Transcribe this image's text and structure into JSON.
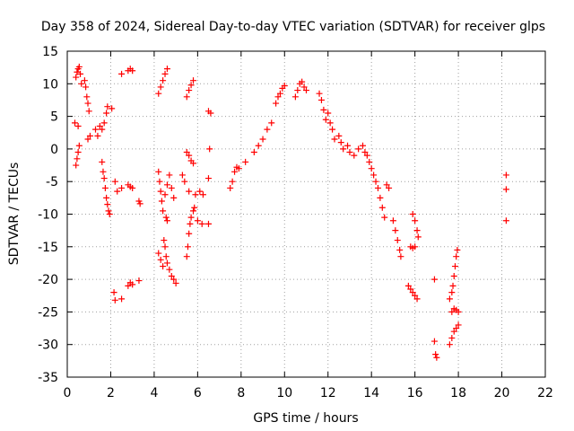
{
  "chart_data": {
    "type": "scatter",
    "title": "Day 358 of 2024, Sidereal Day-to-day VTEC variation (SDTVAR) for receiver glps",
    "xlabel": "GPS time / hours",
    "ylabel": "SDTVAR / TECUs",
    "xlim": [
      0,
      22
    ],
    "ylim": [
      -35,
      15
    ],
    "xticks": [
      "0",
      "2",
      "4",
      "6",
      "8",
      "10",
      "12",
      "14",
      "16",
      "18",
      "20",
      "22"
    ],
    "yticks": [
      "15",
      "10",
      "5",
      "0",
      "-5",
      "-10",
      "-15",
      "-20",
      "-25",
      "-30",
      "-35"
    ],
    "grid": true,
    "marker": "plus",
    "series": [
      {
        "name": "SDTVAR",
        "color": "#ff0000",
        "points": [
          [
            0.4,
            -2.5
          ],
          [
            0.45,
            -1.5
          ],
          [
            0.5,
            -0.5
          ],
          [
            0.55,
            0.5
          ],
          [
            0.35,
            4.0
          ],
          [
            0.5,
            3.5
          ],
          [
            0.4,
            11.0
          ],
          [
            0.45,
            11.8
          ],
          [
            0.5,
            12.3
          ],
          [
            0.55,
            12.6
          ],
          [
            0.6,
            11.5
          ],
          [
            0.65,
            10.0
          ],
          [
            0.8,
            10.5
          ],
          [
            0.85,
            9.5
          ],
          [
            0.9,
            8.0
          ],
          [
            0.95,
            7.0
          ],
          [
            1.0,
            5.8
          ],
          [
            1.05,
            2.0
          ],
          [
            0.95,
            1.5
          ],
          [
            1.3,
            3.0
          ],
          [
            1.4,
            2.0
          ],
          [
            1.5,
            3.5
          ],
          [
            1.6,
            3.0
          ],
          [
            1.7,
            4.0
          ],
          [
            1.8,
            5.5
          ],
          [
            1.85,
            6.5
          ],
          [
            2.05,
            6.2
          ],
          [
            1.6,
            -2.0
          ],
          [
            1.65,
            -3.5
          ],
          [
            1.7,
            -4.5
          ],
          [
            1.75,
            -6.0
          ],
          [
            1.8,
            -7.5
          ],
          [
            1.85,
            -8.5
          ],
          [
            1.9,
            -9.5
          ],
          [
            1.95,
            -10.0
          ],
          [
            2.2,
            -5.0
          ],
          [
            2.3,
            -6.5
          ],
          [
            2.5,
            -6.0
          ],
          [
            2.15,
            -22.0
          ],
          [
            2.2,
            -23.2
          ],
          [
            2.5,
            -23.0
          ],
          [
            2.5,
            11.5
          ],
          [
            2.8,
            12.0
          ],
          [
            2.9,
            12.3
          ],
          [
            3.0,
            12.0
          ],
          [
            2.8,
            -5.5
          ],
          [
            2.9,
            -5.8
          ],
          [
            3.0,
            -6.0
          ],
          [
            2.8,
            -21.0
          ],
          [
            2.9,
            -20.5
          ],
          [
            3.0,
            -20.8
          ],
          [
            3.3,
            -20.2
          ],
          [
            3.3,
            -8.0
          ],
          [
            3.35,
            -8.4
          ],
          [
            4.2,
            8.5
          ],
          [
            4.3,
            9.5
          ],
          [
            4.4,
            10.5
          ],
          [
            4.5,
            11.5
          ],
          [
            4.6,
            12.3
          ],
          [
            4.2,
            -3.5
          ],
          [
            4.25,
            -5.0
          ],
          [
            4.3,
            -6.5
          ],
          [
            4.35,
            -8.0
          ],
          [
            4.4,
            -9.5
          ],
          [
            4.5,
            -7.0
          ],
          [
            4.6,
            -5.5
          ],
          [
            4.7,
            -4.0
          ],
          [
            4.8,
            -6.0
          ],
          [
            4.9,
            -7.5
          ],
          [
            4.55,
            -10.5
          ],
          [
            4.6,
            -11.0
          ],
          [
            4.2,
            -16.0
          ],
          [
            4.3,
            -17.0
          ],
          [
            4.4,
            -18.0
          ],
          [
            4.5,
            -15.0
          ],
          [
            4.55,
            -16.5
          ],
          [
            4.6,
            -17.5
          ],
          [
            4.7,
            -18.5
          ],
          [
            4.8,
            -19.5
          ],
          [
            4.9,
            -20.0
          ],
          [
            5.0,
            -20.6
          ],
          [
            4.45,
            -14.0
          ],
          [
            5.5,
            -16.5
          ],
          [
            5.55,
            -15.0
          ],
          [
            5.6,
            -13.0
          ],
          [
            5.65,
            -11.5
          ],
          [
            5.7,
            -10.5
          ],
          [
            5.8,
            -9.5
          ],
          [
            5.85,
            -9.0
          ],
          [
            5.3,
            -4.0
          ],
          [
            5.4,
            -5.0
          ],
          [
            5.6,
            -6.5
          ],
          [
            5.9,
            -7.0
          ],
          [
            5.5,
            8.0
          ],
          [
            5.6,
            9.0
          ],
          [
            5.7,
            9.8
          ],
          [
            5.8,
            10.5
          ],
          [
            5.5,
            -0.5
          ],
          [
            5.6,
            -1.0
          ],
          [
            5.7,
            -1.8
          ],
          [
            5.8,
            -2.2
          ],
          [
            6.0,
            -11.0
          ],
          [
            6.2,
            -11.5
          ],
          [
            6.5,
            -11.5
          ],
          [
            6.1,
            -6.5
          ],
          [
            6.25,
            -7.0
          ],
          [
            6.5,
            -4.5
          ],
          [
            6.55,
            0.0
          ],
          [
            6.5,
            5.8
          ],
          [
            6.6,
            5.5
          ],
          [
            7.5,
            -6.0
          ],
          [
            7.6,
            -5.0
          ],
          [
            7.7,
            -3.5
          ],
          [
            7.8,
            -2.8
          ],
          [
            7.9,
            -3.0
          ],
          [
            8.2,
            -2.0
          ],
          [
            8.6,
            -0.5
          ],
          [
            8.8,
            0.5
          ],
          [
            9.0,
            1.5
          ],
          [
            9.2,
            3.0
          ],
          [
            9.4,
            4.0
          ],
          [
            9.6,
            7.0
          ],
          [
            9.7,
            8.0
          ],
          [
            9.8,
            8.5
          ],
          [
            9.9,
            9.3
          ],
          [
            10.0,
            9.7
          ],
          [
            10.5,
            8.0
          ],
          [
            10.6,
            9.0
          ],
          [
            10.7,
            10.0
          ],
          [
            10.8,
            10.3
          ],
          [
            10.9,
            9.5
          ],
          [
            11.0,
            9.0
          ],
          [
            11.6,
            8.5
          ],
          [
            11.7,
            7.5
          ],
          [
            11.8,
            6.0
          ],
          [
            11.9,
            4.5
          ],
          [
            12.0,
            5.5
          ],
          [
            12.1,
            4.0
          ],
          [
            12.2,
            3.0
          ],
          [
            12.3,
            1.5
          ],
          [
            12.5,
            2.0
          ],
          [
            12.6,
            1.0
          ],
          [
            12.7,
            0.0
          ],
          [
            12.9,
            0.5
          ],
          [
            13.0,
            -0.5
          ],
          [
            13.2,
            -1.0
          ],
          [
            13.4,
            0.0
          ],
          [
            13.6,
            0.5
          ],
          [
            13.7,
            -0.5
          ],
          [
            13.8,
            -1.0
          ],
          [
            13.9,
            -2.0
          ],
          [
            14.0,
            -3.0
          ],
          [
            14.1,
            -4.0
          ],
          [
            14.2,
            -5.0
          ],
          [
            14.3,
            -6.0
          ],
          [
            14.4,
            -7.5
          ],
          [
            14.5,
            -9.0
          ],
          [
            14.6,
            -10.5
          ],
          [
            14.7,
            -5.5
          ],
          [
            14.8,
            -6.0
          ],
          [
            15.0,
            -11.0
          ],
          [
            15.1,
            -12.5
          ],
          [
            15.2,
            -14.0
          ],
          [
            15.3,
            -15.5
          ],
          [
            15.35,
            -16.5
          ],
          [
            15.8,
            -15.0
          ],
          [
            15.9,
            -15.2
          ],
          [
            16.0,
            -15.0
          ],
          [
            15.9,
            -10.0
          ],
          [
            16.0,
            -11.0
          ],
          [
            16.1,
            -12.5
          ],
          [
            16.15,
            -13.5
          ],
          [
            15.7,
            -21.0
          ],
          [
            15.8,
            -21.5
          ],
          [
            15.9,
            -22.0
          ],
          [
            16.0,
            -22.5
          ],
          [
            16.1,
            -23.0
          ],
          [
            16.9,
            -20.0
          ],
          [
            16.9,
            -29.5
          ],
          [
            16.95,
            -31.5
          ],
          [
            17.0,
            -32.0
          ],
          [
            17.6,
            -23.0
          ],
          [
            17.7,
            -22.0
          ],
          [
            17.75,
            -21.0
          ],
          [
            17.8,
            -19.5
          ],
          [
            17.85,
            -18.0
          ],
          [
            17.9,
            -16.5
          ],
          [
            17.95,
            -15.5
          ],
          [
            17.7,
            -25.0
          ],
          [
            17.8,
            -24.5
          ],
          [
            17.9,
            -24.7
          ],
          [
            18.0,
            -25.0
          ],
          [
            17.6,
            -30.0
          ],
          [
            17.7,
            -29.0
          ],
          [
            17.8,
            -28.0
          ],
          [
            17.9,
            -27.5
          ],
          [
            18.0,
            -27.0
          ],
          [
            20.2,
            -4.0
          ],
          [
            20.2,
            -6.2
          ],
          [
            20.2,
            -11.0
          ]
        ]
      }
    ]
  }
}
